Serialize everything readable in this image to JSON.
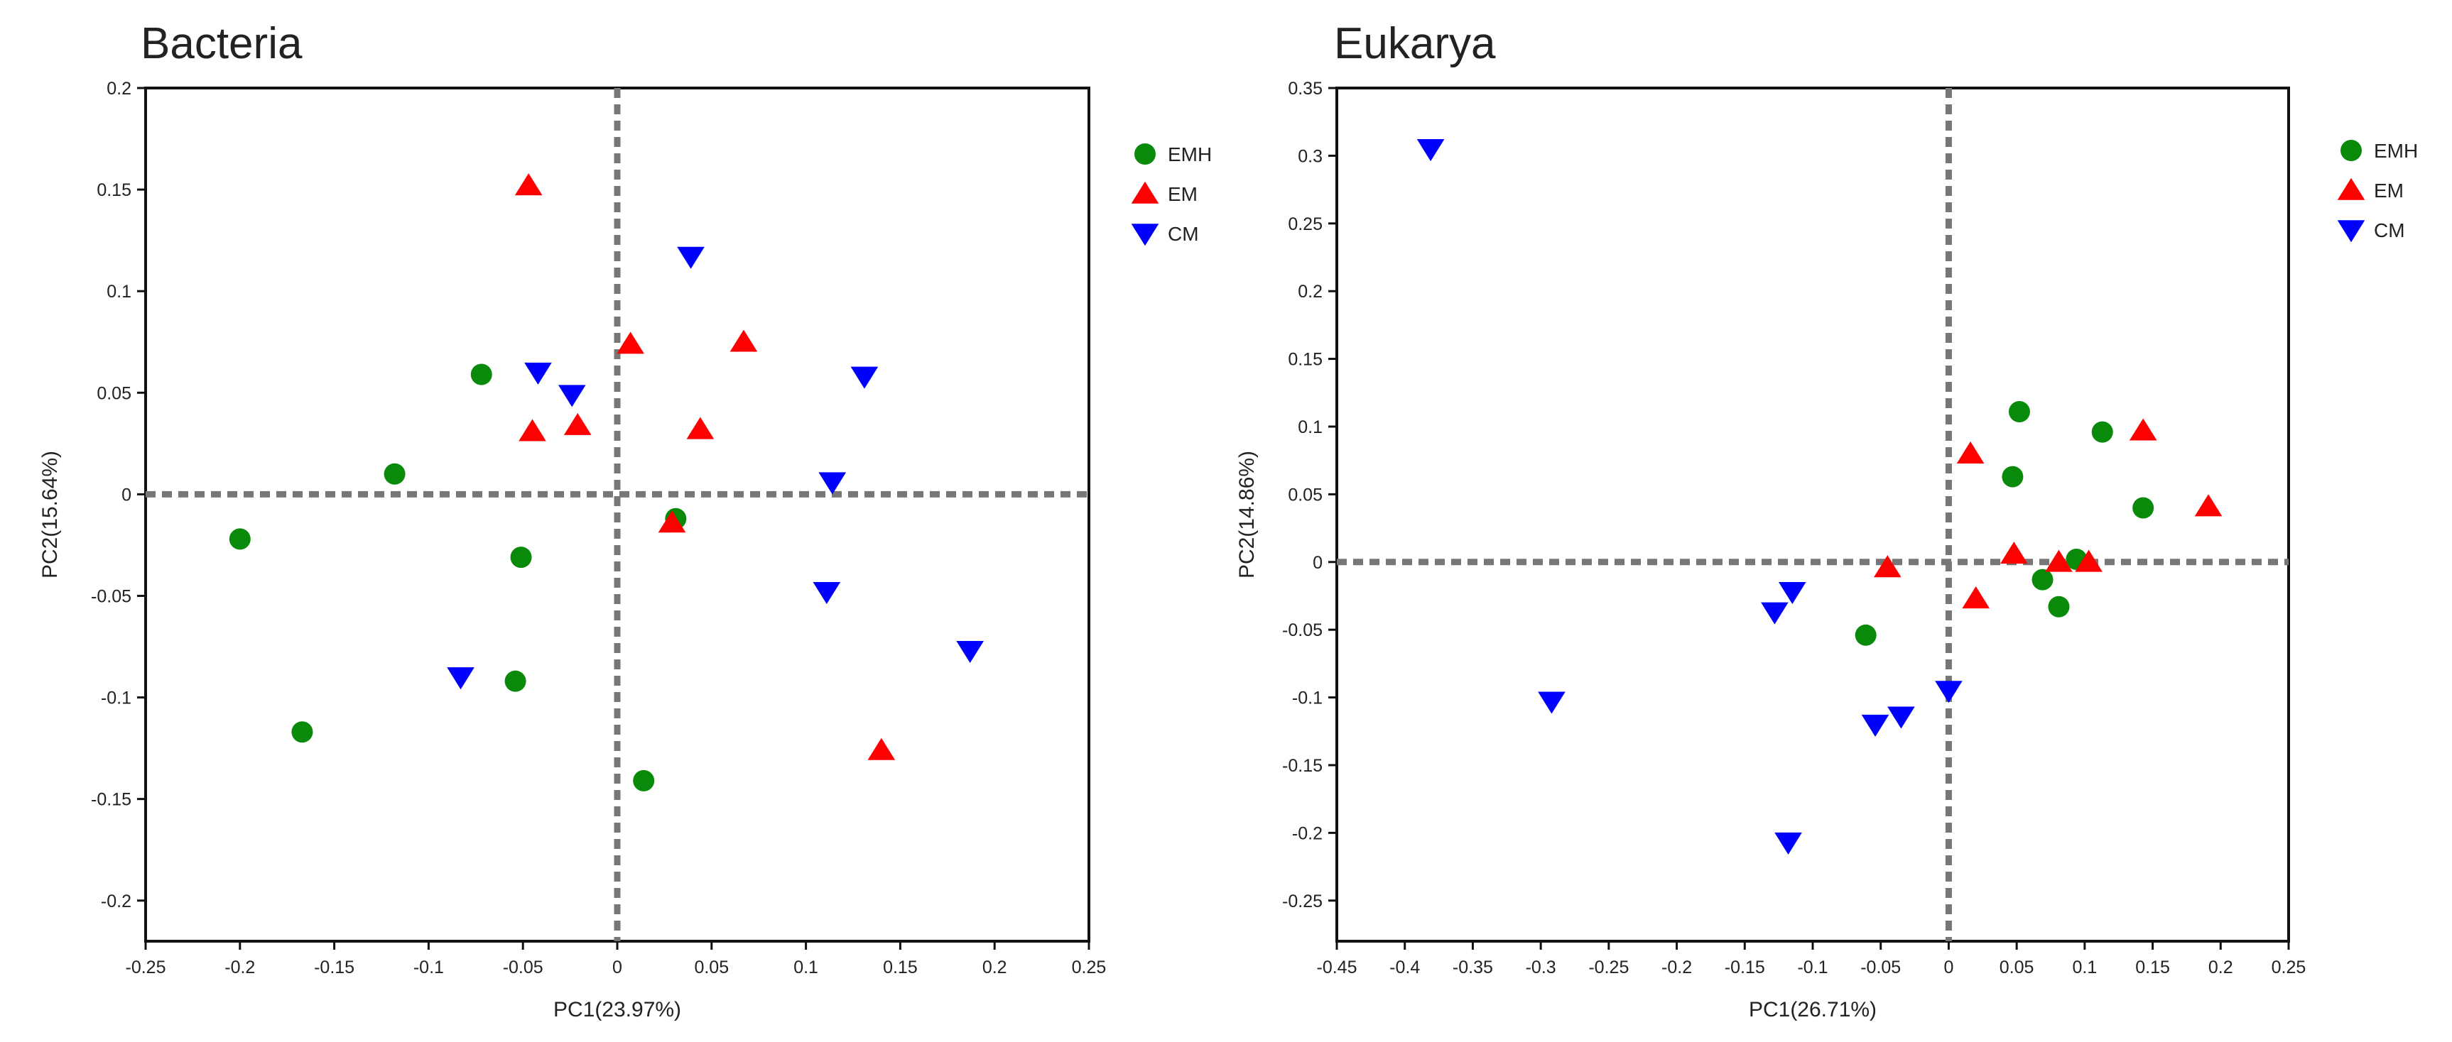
{
  "colors": {
    "EMH": "#0a8a0a",
    "EM": "#ff0000",
    "CM": "#0000ff",
    "zero_line": "#777777",
    "frame": "#111111"
  },
  "legend": {
    "placement": "right of plot",
    "entries": [
      {
        "label": "EMH",
        "marker": "circle",
        "color": "#0a8a0a"
      },
      {
        "label": "EM",
        "marker": "triangle-up",
        "color": "#ff0000"
      },
      {
        "label": "CM",
        "marker": "triangle-down",
        "color": "#0000ff"
      }
    ]
  },
  "chart_data": [
    {
      "type": "scatter",
      "title": "Bacteria",
      "xlabel": "PC1(23.97%)",
      "ylabel": "PC2(15.64%)",
      "xlim": [
        -0.25,
        0.25
      ],
      "ylim": [
        -0.22,
        0.2
      ],
      "xticks": [
        -0.25,
        -0.2,
        -0.15,
        -0.1,
        -0.05,
        0,
        0.05,
        0.1,
        0.15,
        0.2,
        0.25
      ],
      "xtick_labels": [
        "-0.25",
        "-0.2",
        "-0.15",
        "-0.1",
        "-0.05",
        "0",
        "0.05",
        "0.1",
        "0.15",
        "0.2",
        "0.25"
      ],
      "yticks": [
        0.2,
        0.15,
        0.1,
        0.05,
        0,
        -0.05,
        -0.1,
        -0.15,
        -0.2
      ],
      "ytick_labels": [
        "0.2",
        "0.15",
        "0.1",
        "0.05",
        "0",
        "-0.05",
        "-0.1",
        "-0.15",
        "-0.2"
      ],
      "grid": false,
      "zero_lines": true,
      "series": [
        {
          "name": "EMH",
          "marker": "circle",
          "points": [
            [
              -0.072,
              0.059
            ],
            [
              -0.118,
              0.01
            ],
            [
              -0.2,
              -0.022
            ],
            [
              -0.051,
              -0.031
            ],
            [
              -0.054,
              -0.092
            ],
            [
              -0.167,
              -0.117
            ],
            [
              0.014,
              -0.141
            ],
            [
              0.031,
              -0.012
            ]
          ]
        },
        {
          "name": "EM",
          "marker": "triangle-up",
          "points": [
            [
              -0.047,
              0.152
            ],
            [
              0.007,
              0.074
            ],
            [
              0.067,
              0.075
            ],
            [
              -0.045,
              0.031
            ],
            [
              -0.021,
              0.034
            ],
            [
              0.044,
              0.032
            ],
            [
              0.029,
              -0.014
            ],
            [
              0.14,
              -0.126
            ]
          ]
        },
        {
          "name": "CM",
          "marker": "triangle-down",
          "points": [
            [
              0.039,
              0.117
            ],
            [
              -0.042,
              0.06
            ],
            [
              -0.024,
              0.049
            ],
            [
              0.131,
              0.058
            ],
            [
              0.114,
              0.006
            ],
            [
              0.111,
              -0.048
            ],
            [
              0.187,
              -0.077
            ],
            [
              -0.083,
              -0.09
            ]
          ]
        }
      ]
    },
    {
      "type": "scatter",
      "title": "Eukarya",
      "xlabel": "PC1(26.71%)",
      "ylabel": "PC2(14.86%)",
      "xlim": [
        -0.45,
        0.25
      ],
      "ylim": [
        -0.28,
        0.35
      ],
      "xticks": [
        -0.45,
        -0.4,
        -0.35,
        -0.3,
        -0.25,
        -0.2,
        -0.15,
        -0.1,
        -0.05,
        0,
        0.05,
        0.1,
        0.15,
        0.2,
        0.25
      ],
      "xtick_labels": [
        "-0.45",
        "-0.4",
        "-0.35",
        "-0.3",
        "-0.25",
        "-0.2",
        "-0.15",
        "-0.1",
        "-0.05",
        "0",
        "0.05",
        "0.1",
        "0.15",
        "0.2",
        "0.25"
      ],
      "yticks": [
        0.35,
        0.3,
        0.25,
        0.2,
        0.15,
        0.1,
        0.05,
        0,
        -0.05,
        -0.1,
        -0.15,
        -0.2,
        -0.25
      ],
      "ytick_labels": [
        "0.35",
        "0.3",
        "0.25",
        "0.2",
        "0.15",
        "0.1",
        "0.05",
        "0",
        "-0.05",
        "-0.1",
        "-0.15",
        "-0.2",
        "-0.25"
      ],
      "grid": false,
      "zero_lines": true,
      "series": [
        {
          "name": "EMH",
          "marker": "circle",
          "points": [
            [
              0.052,
              0.111
            ],
            [
              0.113,
              0.096
            ],
            [
              0.047,
              0.063
            ],
            [
              0.143,
              0.04
            ],
            [
              0.094,
              0.002
            ],
            [
              0.069,
              -0.013
            ],
            [
              0.081,
              -0.033
            ],
            [
              -0.061,
              -0.054
            ]
          ]
        },
        {
          "name": "EM",
          "marker": "triangle-up",
          "points": [
            [
              0.143,
              0.097
            ],
            [
              0.016,
              0.08
            ],
            [
              0.191,
              0.041
            ],
            [
              0.048,
              0.006
            ],
            [
              0.081,
              0.0
            ],
            [
              0.103,
              0.0
            ],
            [
              -0.045,
              -0.004
            ],
            [
              0.02,
              -0.027
            ]
          ]
        },
        {
          "name": "CM",
          "marker": "triangle-down",
          "points": [
            [
              -0.381,
              0.305
            ],
            [
              -0.115,
              -0.022
            ],
            [
              -0.128,
              -0.037
            ],
            [
              0.0,
              -0.095
            ],
            [
              -0.292,
              -0.103
            ],
            [
              -0.035,
              -0.114
            ],
            [
              -0.054,
              -0.12
            ],
            [
              -0.118,
              -0.207
            ]
          ]
        }
      ]
    }
  ]
}
